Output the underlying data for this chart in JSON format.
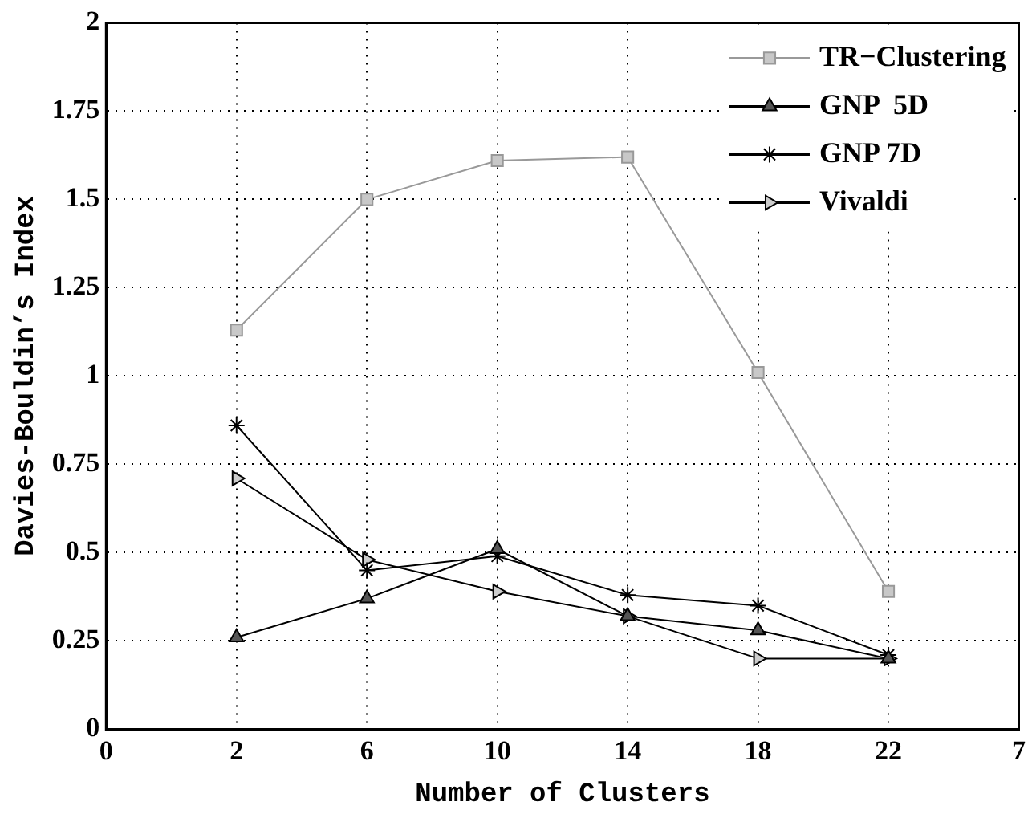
{
  "chart_data": {
    "type": "line",
    "xlabel": "Number of Clusters",
    "ylabel": "Davies-Bouldin’s Index",
    "categories": [
      "0",
      "2",
      "6",
      "10",
      "14",
      "18",
      "22",
      "7"
    ],
    "ylim": [
      0,
      2
    ],
    "yticks": [
      0,
      0.25,
      0.5,
      0.75,
      1,
      1.25,
      1.5,
      1.75,
      2
    ],
    "grid": true,
    "legend": "top right",
    "line_style": "solid",
    "series": [
      {
        "name": "TR−Clustering",
        "color": "#999999",
        "marker": "square",
        "values": [
          null,
          1.13,
          1.5,
          1.61,
          1.62,
          1.01,
          0.39,
          null
        ]
      },
      {
        "name": "GNP  5D",
        "color": "#000000",
        "marker": "triangle",
        "values": [
          null,
          0.26,
          0.37,
          0.51,
          0.32,
          0.28,
          0.2,
          null
        ]
      },
      {
        "name": "GNP 7D",
        "color": "#000000",
        "marker": "cross",
        "values": [
          null,
          0.86,
          0.45,
          0.49,
          0.38,
          0.35,
          0.21,
          null
        ]
      },
      {
        "name": "Vivaldi",
        "color": "#000000",
        "marker": "triangle-right",
        "values": [
          null,
          0.71,
          0.48,
          0.39,
          0.32,
          0.2,
          0.2,
          null
        ]
      }
    ]
  }
}
